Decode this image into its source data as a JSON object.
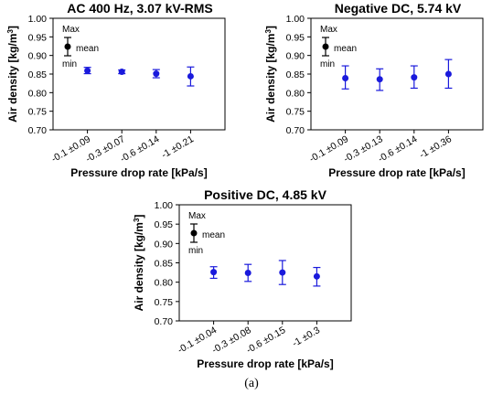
{
  "caption": "(a)",
  "colors": {
    "data": "#1a1adc",
    "axis": "#000000",
    "legend_marker": "#000000"
  },
  "legend": {
    "max": "Max",
    "mean": "mean",
    "min": "min"
  },
  "chart_data": [
    {
      "type": "scatter",
      "title": "AC 400 Hz, 3.07 kV-RMS",
      "xlabel": "Pressure drop rate [kPa/s]",
      "ylabel": "Air density [kg/m3]",
      "ylim": [
        0.7,
        1.0
      ],
      "yticks": [
        "0.70",
        "0.75",
        "0.80",
        "0.85",
        "0.90",
        "0.95",
        "1.00"
      ],
      "categories": [
        "-0.1 ±0.09",
        "-0.3 ±0.07",
        "-0.6 ±0.14",
        "-1 ±0.21"
      ],
      "mean": [
        0.859,
        0.856,
        0.851,
        0.844
      ],
      "max": [
        0.868,
        0.861,
        0.862,
        0.869
      ],
      "min": [
        0.851,
        0.851,
        0.84,
        0.818
      ],
      "legend": "inside top-left, Max/mean/min error bar key"
    },
    {
      "type": "scatter",
      "title": "Negative DC, 5.74 kV",
      "xlabel": "Pressure drop rate [kPa/s]",
      "ylabel": "Air density [kg/m3]",
      "ylim": [
        0.7,
        1.0
      ],
      "yticks": [
        "0.70",
        "0.75",
        "0.80",
        "0.85",
        "0.90",
        "0.95",
        "1.00"
      ],
      "categories": [
        "-0.1 ±0.09",
        "-0.3 ±0.13",
        "-0.6 ±0.14",
        "-1 ±0.36"
      ],
      "mean": [
        0.839,
        0.836,
        0.841,
        0.85
      ],
      "max": [
        0.872,
        0.864,
        0.872,
        0.889
      ],
      "min": [
        0.81,
        0.806,
        0.812,
        0.812
      ],
      "legend": "inside top-left, Max/mean/min error bar key"
    },
    {
      "type": "scatter",
      "title": "Positive DC, 4.85 kV",
      "xlabel": "Pressure drop rate [kPa/s]",
      "ylabel": "Air density [kg/m3]",
      "ylim": [
        0.7,
        1.0
      ],
      "yticks": [
        "0.70",
        "0.75",
        "0.80",
        "0.85",
        "0.90",
        "0.95",
        "1.00"
      ],
      "categories": [
        "-0.1 ±0.04",
        "-0.3 ±0.08",
        "-0.6 ±0.15",
        "-1 ±0.3"
      ],
      "mean": [
        0.826,
        0.824,
        0.825,
        0.815
      ],
      "max": [
        0.84,
        0.846,
        0.856,
        0.838
      ],
      "min": [
        0.81,
        0.802,
        0.794,
        0.79
      ],
      "legend": "inside top-left, Max/mean/min error bar key"
    }
  ]
}
